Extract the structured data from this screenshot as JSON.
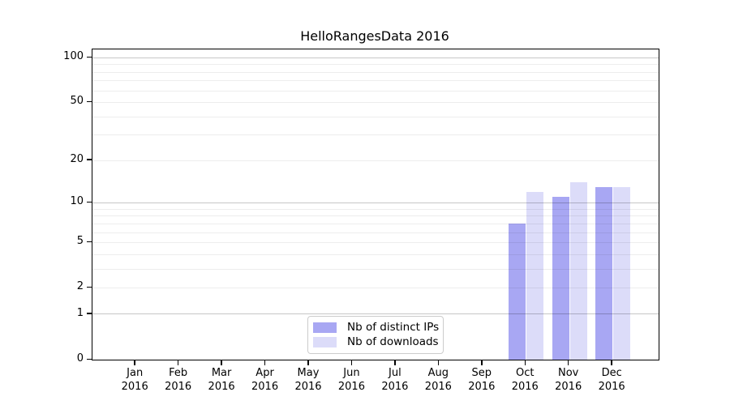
{
  "title": "HelloRangesData 2016",
  "chart_data": {
    "type": "bar",
    "title": "HelloRangesData 2016",
    "categories": [
      "Jan 2016",
      "Feb 2016",
      "Mar 2016",
      "Apr 2016",
      "May 2016",
      "Jun 2016",
      "Jul 2016",
      "Aug 2016",
      "Sep 2016",
      "Oct 2016",
      "Nov 2016",
      "Dec 2016"
    ],
    "months": [
      "Jan",
      "Feb",
      "Mar",
      "Apr",
      "May",
      "Jun",
      "Jul",
      "Aug",
      "Sep",
      "Oct",
      "Nov",
      "Dec"
    ],
    "year": "2016",
    "series": [
      {
        "name": "Nb of distinct IPs",
        "color": "#a8a7f3",
        "values": [
          0,
          0,
          0,
          0,
          0,
          0,
          0,
          0,
          0,
          7,
          11,
          13
        ]
      },
      {
        "name": "Nb of downloads",
        "color": "#dcdcf9",
        "values": [
          0,
          0,
          0,
          0,
          0,
          0,
          0,
          0,
          0,
          12,
          14,
          13
        ]
      }
    ],
    "xlabel": "",
    "ylabel": "",
    "y_axis": {
      "scale": "log1p",
      "range": [
        0,
        100
      ],
      "tick_values": [
        0,
        1,
        2,
        5,
        10,
        20,
        50,
        100
      ],
      "major_gridlines": [
        1,
        10,
        100
      ],
      "minor_gridlines": [
        2,
        3,
        4,
        5,
        6,
        7,
        8,
        9,
        20,
        30,
        40,
        50,
        60,
        70,
        80,
        90
      ],
      "grid": true
    },
    "legend": {
      "position": "lower-center",
      "entries": [
        "Nb of distinct IPs",
        "Nb of downloads"
      ]
    }
  },
  "colors": {
    "bar_distinct_ips": "#a8a7f3",
    "bar_downloads": "#dcdcf9",
    "major_grid": "#c8c8c8",
    "minor_grid": "#ececec",
    "axis": "#000000",
    "legend_border": "#cccccc",
    "background": "#ffffff"
  }
}
